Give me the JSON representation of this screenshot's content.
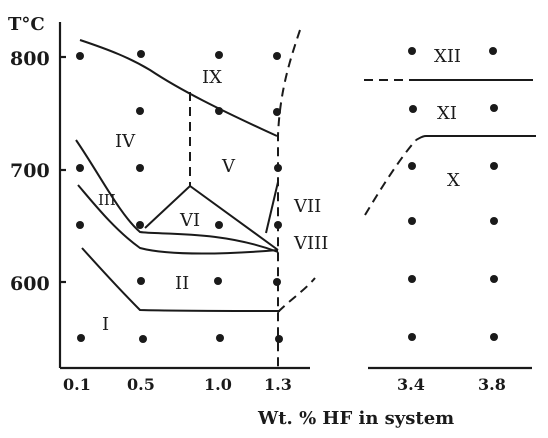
{
  "axis": {
    "y_title": "T°C",
    "x_title": "Wt. % HF in system",
    "y_ticks": [
      "800",
      "700",
      "600"
    ],
    "x_ticks": [
      "0.1",
      "0.5",
      "1.0",
      "1.3",
      "3.4",
      "3.8"
    ]
  },
  "regions": [
    "I",
    "II",
    "III",
    "IV",
    "V",
    "VI",
    "VII",
    "VIII",
    "IX",
    "X",
    "XI",
    "XII"
  ],
  "colors": {
    "ink": "#1a1a1a",
    "background": "#ffffff"
  }
}
